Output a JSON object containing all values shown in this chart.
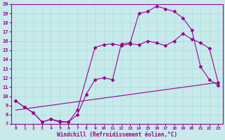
{
  "xlabel": "Windchill (Refroidissement éolien,°C)",
  "bg_color": "#c8eaea",
  "line_color": "#990099",
  "grid_color": "#aadddd",
  "xlim": [
    -0.5,
    23.5
  ],
  "ylim": [
    7,
    20
  ],
  "xticks": [
    0,
    1,
    2,
    3,
    4,
    5,
    6,
    7,
    8,
    9,
    10,
    11,
    12,
    13,
    14,
    15,
    16,
    17,
    18,
    19,
    20,
    21,
    22,
    23
  ],
  "yticks": [
    7,
    8,
    9,
    10,
    11,
    12,
    13,
    14,
    15,
    16,
    17,
    18,
    19,
    20
  ],
  "line1_x": [
    0,
    1,
    2,
    3,
    4,
    5,
    6,
    7,
    9,
    10,
    11,
    12,
    13,
    14,
    15,
    16,
    17,
    18,
    19,
    20,
    21,
    22,
    23
  ],
  "line1_y": [
    9.5,
    8.8,
    8.2,
    7.2,
    7.5,
    7.2,
    7.2,
    8.5,
    15.3,
    15.6,
    15.7,
    15.5,
    15.7,
    15.6,
    16.0,
    15.8,
    15.5,
    16.0,
    16.8,
    16.2,
    15.8,
    15.2,
    11.5
  ],
  "line2_x": [
    0,
    1,
    2,
    3,
    4,
    5,
    6,
    7,
    8,
    9,
    10,
    11,
    12,
    13,
    14,
    15,
    16,
    17,
    18,
    19,
    20,
    21,
    22,
    23
  ],
  "line2_y": [
    9.5,
    8.8,
    8.2,
    7.2,
    7.5,
    7.3,
    7.2,
    8.0,
    10.2,
    11.8,
    12.0,
    11.8,
    15.7,
    15.8,
    19.0,
    19.2,
    19.8,
    19.5,
    19.2,
    18.5,
    17.2,
    13.2,
    11.8,
    11.2
  ],
  "line3_x": [
    0,
    23
  ],
  "line3_y": [
    8.5,
    11.5
  ]
}
